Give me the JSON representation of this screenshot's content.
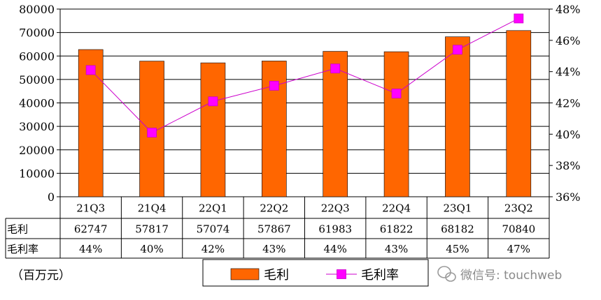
{
  "chart_data": {
    "type": "bar",
    "categories": [
      "21Q3",
      "21Q4",
      "22Q1",
      "22Q2",
      "22Q3",
      "22Q4",
      "23Q1",
      "23Q2"
    ],
    "series": [
      {
        "name": "毛利",
        "type": "bar",
        "axis": "left",
        "color": "#FF6600",
        "values": [
          62747,
          57817,
          57074,
          57867,
          61983,
          61822,
          68182,
          70840
        ]
      },
      {
        "name": "毛利率",
        "type": "line",
        "axis": "right",
        "color": "#FF00FF",
        "values": [
          44.1,
          40.1,
          42.1,
          43.1,
          44.2,
          42.6,
          45.4,
          47.4
        ]
      }
    ],
    "y_left": {
      "min": 0,
      "max": 80000,
      "step": 10000
    },
    "y_right": {
      "min": 36,
      "max": 48,
      "step": 2,
      "suffix": "%"
    },
    "table": {
      "rows": [
        {
          "label": "毛利",
          "values": [
            "62747",
            "57817",
            "57074",
            "57867",
            "61983",
            "61822",
            "68182",
            "70840"
          ]
        },
        {
          "label": "毛利率",
          "values": [
            "44%",
            "40%",
            "42%",
            "43%",
            "44%",
            "43%",
            "45%",
            "47%"
          ]
        }
      ]
    },
    "unit_label": "（百万元）",
    "legend": [
      "毛利",
      "毛利率"
    ],
    "grid": true
  },
  "watermark": "微信号: touchweb"
}
